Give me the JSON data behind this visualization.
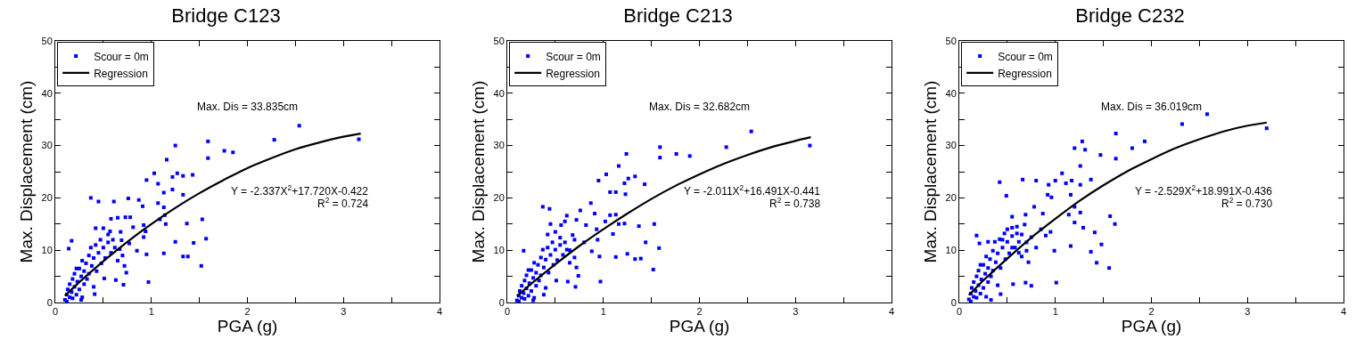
{
  "chart_data": [
    {
      "type": "scatter",
      "title": "Bridge C123",
      "xlabel": "PGA (g)",
      "ylabel": "Max. Displacement (cm)",
      "xlim": [
        0,
        4
      ],
      "ylim": [
        0,
        50
      ],
      "xticks": [
        0,
        {
          "value": 0.5,
          "label": null
        },
        1,
        {
          "value": 1.5,
          "label": null
        },
        2,
        {
          "value": 2.5,
          "label": null
        },
        3,
        {
          "value": 3.5,
          "label": null
        },
        4
      ],
      "yticks": [
        0,
        {
          "value": 5,
          "label": null
        },
        10,
        {
          "value": 15,
          "label": null
        },
        20,
        {
          "value": 25,
          "label": null
        },
        30,
        {
          "value": 35,
          "label": null
        },
        40,
        {
          "value": 45,
          "label": null
        },
        50
      ],
      "grid": false,
      "legend": "top left",
      "annotations": [
        "Max. Dis = 33.835cm",
        "Y = -2.337X$^{2}$+17.720X-0.422",
        "R$^{2}$ = 0.724"
      ],
      "series": [
        {
          "name": "Scour = 0m",
          "color": "#0000ff",
          "marker": "square",
          "x": [
            2.54,
            3.16,
            2.28,
            1.59,
            1.76,
            1.85,
            1.25,
            1.59,
            1.16,
            1.03,
            0.95,
            1.07,
            1.22,
            1.27,
            1.33,
            1.43,
            1.13,
            1.22,
            1.33,
            0.37,
            0.45,
            0.61,
            0.76,
            0.87,
            0.91,
            1.07,
            1.13,
            1.53,
            1.37,
            1.25,
            1.44,
            1.57,
            1.33,
            1.38,
            1.52,
            1.13,
            0.95,
            0.97,
            0.71,
            0.74,
            0.63,
            0.51,
            0.41,
            0.27,
            0.17,
            0.14,
            0.78,
            0.92,
            0.94,
            0.92,
            0.85,
            0.77,
            0.69,
            0.67,
            0.57,
            0.5,
            0.42,
            0.58,
            0.65,
            0.73,
            0.81,
            1.09,
            1.15,
            1.14,
            0.1,
            0.12,
            0.13,
            0.15,
            0.15,
            0.17,
            0.18,
            0.2,
            0.2,
            0.22,
            0.23,
            0.25,
            0.25,
            0.27,
            0.28,
            0.3,
            0.3,
            0.32,
            0.33,
            0.35,
            0.35,
            0.37,
            0.38,
            0.4,
            0.4,
            0.42,
            0.43,
            0.45,
            0.47,
            0.48,
            0.5,
            0.52,
            0.55,
            0.55,
            0.58,
            0.6,
            0.62,
            0.65,
            0.68,
            0.7,
            0.72,
            0.12,
            0.18,
            0.22,
            0.28
          ],
          "values": [
            33.8,
            31.2,
            31.1,
            30.8,
            29.0,
            28.7,
            30.0,
            27.6,
            27.3,
            24.7,
            23.4,
            22.7,
            24.0,
            24.7,
            24.2,
            24.4,
            21.0,
            21.6,
            20.6,
            20.0,
            19.3,
            19.3,
            19.9,
            19.6,
            18.4,
            19.0,
            18.2,
            15.9,
            15.1,
            11.6,
            11.4,
            12.2,
            8.8,
            8.8,
            7.0,
            9.4,
            9.2,
            3.9,
            3.4,
            5.7,
            4.3,
            4.6,
            1.6,
            0.5,
            11.8,
            10.3,
            16.3,
            14.8,
            13.6,
            12.5,
            9.9,
            11.3,
            11.9,
            10.2,
            13.6,
            14.2,
            14.2,
            16.0,
            16.2,
            16.3,
            14.4,
            15.9,
            15.0,
            16.7,
            0.5,
            1.5,
            2.5,
            1.0,
            3.5,
            2.0,
            4.5,
            3.0,
            5.5,
            1.5,
            4.0,
            6.5,
            2.5,
            5.0,
            8.0,
            3.5,
            6.0,
            7.5,
            4.5,
            9.0,
            5.5,
            10.5,
            7.0,
            8.5,
            3.0,
            11.0,
            6.0,
            9.5,
            12.0,
            7.5,
            10.5,
            8.5,
            11.5,
            13.0,
            9.5,
            12.0,
            10.5,
            8.0,
            13.5,
            9.0,
            7.0,
            0.2,
            0.8,
            6.5,
            1.0
          ]
        },
        {
          "name": "Regression",
          "type": "line",
          "color": "#000000",
          "line_style": "solid",
          "x": [
            0.1,
            0.25,
            0.5,
            0.75,
            1,
            1.25,
            1.5,
            1.75,
            2,
            2.25,
            2.5,
            2.75,
            3,
            3.18
          ],
          "values": [
            1.3,
            3.9,
            7.9,
            11.6,
            15.0,
            18.1,
            20.9,
            23.4,
            25.7,
            27.6,
            29.3,
            30.6,
            31.7,
            32.3
          ]
        }
      ]
    },
    {
      "type": "scatter",
      "title": "Bridge C213",
      "xlabel": "PGA (g)",
      "ylabel": "Max. Displacement (cm)",
      "xlim": [
        0,
        4
      ],
      "ylim": [
        0,
        50
      ],
      "xticks": [
        0,
        {
          "value": 0.5,
          "label": null
        },
        1,
        {
          "value": 1.5,
          "label": null
        },
        2,
        {
          "value": 2.5,
          "label": null
        },
        3,
        {
          "value": 3.5,
          "label": null
        },
        4
      ],
      "yticks": [
        0,
        {
          "value": 5,
          "label": null
        },
        10,
        {
          "value": 15,
          "label": null
        },
        20,
        {
          "value": 25,
          "label": null
        },
        30,
        {
          "value": 35,
          "label": null
        },
        40,
        {
          "value": 45,
          "label": null
        },
        50
      ],
      "grid": false,
      "legend": "top left",
      "annotations": [
        "Max. Dis = 32.682cm",
        "Y = -2.011X$^{2}$+16.491X-0.441",
        "R$^{2}$ = 0.738"
      ],
      "series": [
        {
          "name": "Scour = 0m",
          "color": "#0000ff",
          "marker": "square",
          "x": [
            2.54,
            3.15,
            2.28,
            1.59,
            1.59,
            1.76,
            1.9,
            1.24,
            1.16,
            1.03,
            0.95,
            1.22,
            1.26,
            1.33,
            1.43,
            1.07,
            1.13,
            1.23,
            0.37,
            0.44,
            0.62,
            0.76,
            0.87,
            0.91,
            1.07,
            1.13,
            1.53,
            1.37,
            1.44,
            1.58,
            1.25,
            1.33,
            1.39,
            1.52,
            1.13,
            0.96,
            0.97,
            0.71,
            0.74,
            0.63,
            0.51,
            0.38,
            0.27,
            0.17,
            1.16,
            1.22,
            1.1,
            0.93,
            0.94,
            0.88,
            0.8,
            0.7,
            0.65,
            0.56,
            0.5,
            0.45,
            0.42,
            0.6,
            0.72,
            0.82,
            1.02,
            0.1,
            0.12,
            0.13,
            0.15,
            0.15,
            0.17,
            0.18,
            0.2,
            0.2,
            0.22,
            0.23,
            0.25,
            0.25,
            0.27,
            0.28,
            0.3,
            0.3,
            0.32,
            0.33,
            0.35,
            0.35,
            0.37,
            0.38,
            0.4,
            0.4,
            0.42,
            0.43,
            0.45,
            0.47,
            0.48,
            0.5,
            0.52,
            0.55,
            0.55,
            0.58,
            0.6,
            0.62,
            0.65,
            0.68,
            0.7,
            0.72,
            0.12,
            0.18,
            0.22,
            0.28
          ],
          "values": [
            32.7,
            30.0,
            29.7,
            29.7,
            27.7,
            28.4,
            28.0,
            28.4,
            26.1,
            24.5,
            23.3,
            22.8,
            23.7,
            24.1,
            22.6,
            21.1,
            21.1,
            20.7,
            18.3,
            17.9,
            16.6,
            17.6,
            19.0,
            17.0,
            16.7,
            16.8,
            15.0,
            14.6,
            11.5,
            10.4,
            9.3,
            8.3,
            8.4,
            6.3,
            8.7,
            8.8,
            4.0,
            3.0,
            5.1,
            4.0,
            4.2,
            1.5,
            0.4,
            9.9,
            15.0,
            15.1,
            13.1,
            14.0,
            12.0,
            9.8,
            11.5,
            12.0,
            10.0,
            14.8,
            13.5,
            15.0,
            13.0,
            15.5,
            15.8,
            14.8,
            15.5,
            0.4,
            1.3,
            2.2,
            0.9,
            3.2,
            1.8,
            4.2,
            2.7,
            5.2,
            1.3,
            3.7,
            6.2,
            2.2,
            4.7,
            7.6,
            3.2,
            5.7,
            7.2,
            4.2,
            8.6,
            5.2,
            10.1,
            6.7,
            8.2,
            2.8,
            10.5,
            5.7,
            9.1,
            11.5,
            7.2,
            10.1,
            8.1,
            11.0,
            12.4,
            9.1,
            11.5,
            10.1,
            7.6,
            12.9,
            8.6,
            6.7,
            0.2,
            0.7,
            6.2,
            0.9
          ]
        },
        {
          "name": "Regression",
          "type": "line",
          "color": "#000000",
          "line_style": "solid",
          "x": [
            0.1,
            0.25,
            0.5,
            0.75,
            1,
            1.25,
            1.5,
            1.75,
            2,
            2.25,
            2.5,
            2.75,
            3,
            3.16
          ],
          "values": [
            1.2,
            3.6,
            7.3,
            10.8,
            14.0,
            17.0,
            19.8,
            22.3,
            24.5,
            26.5,
            28.2,
            29.7,
            30.9,
            31.6
          ]
        }
      ]
    },
    {
      "type": "scatter",
      "title": "Bridge C232",
      "xlabel": "PGA (g)",
      "ylabel": "Max. Displacement (cm)",
      "xlim": [
        0,
        4
      ],
      "ylim": [
        0,
        50
      ],
      "xticks": [
        0,
        {
          "value": 0.5,
          "label": null
        },
        1,
        {
          "value": 1.5,
          "label": null
        },
        2,
        {
          "value": 2.5,
          "label": null
        },
        3,
        {
          "value": 3.5,
          "label": null
        },
        4
      ],
      "yticks": [
        0,
        {
          "value": 5,
          "label": null
        },
        10,
        {
          "value": 15,
          "label": null
        },
        20,
        {
          "value": 25,
          "label": null
        },
        30,
        {
          "value": 35,
          "label": null
        },
        40,
        {
          "value": 45,
          "label": null
        },
        50
      ],
      "grid": false,
      "legend": "top left",
      "annotations": [
        "Max. Dis = 36.019cm",
        "Y = -2.529X$^{2}$+18.991X-0.436",
        "R$^{2}$ = 0.730"
      ],
      "series": [
        {
          "name": "Scour = 0m",
          "color": "#0000ff",
          "marker": "square",
          "x": [
            2.58,
            3.2,
            2.32,
            1.63,
            1.63,
            1.8,
            1.93,
            1.28,
            1.2,
            1.31,
            1.47,
            1.26,
            1.07,
            1.0,
            0.93,
            1.11,
            1.17,
            1.26,
            1.37,
            1.16,
            0.92,
            0.96,
            0.42,
            0.49,
            0.66,
            0.8,
            0.78,
            0.69,
            0.55,
            0.87,
            1.14,
            1.2,
            1.26,
            1.57,
            1.62,
            1.2,
            1.29,
            1.41,
            1.48,
            1.37,
            1.43,
            1.56,
            1.16,
            0.99,
            1.01,
            0.75,
            0.69,
            0.56,
            0.43,
            0.33,
            0.18,
            0.21,
            0.3,
            0.6,
            0.65,
            0.7,
            0.75,
            0.8,
            0.85,
            0.9,
            0.95,
            0.5,
            0.45,
            0.55,
            0.62,
            0.1,
            0.12,
            0.13,
            0.15,
            0.15,
            0.17,
            0.18,
            0.2,
            0.2,
            0.22,
            0.23,
            0.25,
            0.25,
            0.27,
            0.28,
            0.3,
            0.3,
            0.32,
            0.33,
            0.35,
            0.35,
            0.37,
            0.38,
            0.4,
            0.4,
            0.42,
            0.43,
            0.45,
            0.47,
            0.48,
            0.5,
            0.52,
            0.55,
            0.55,
            0.58,
            0.6,
            0.62,
            0.65,
            0.68,
            0.7,
            0.72,
            0.12,
            0.18,
            0.22,
            0.28
          ],
          "values": [
            36.0,
            33.3,
            34.1,
            32.3,
            27.5,
            29.5,
            30.8,
            30.8,
            29.5,
            29.2,
            28.2,
            26.1,
            24.7,
            23.3,
            22.5,
            22.8,
            23.3,
            22.5,
            23.5,
            20.6,
            20.6,
            20.1,
            23.0,
            20.4,
            23.5,
            23.3,
            18.3,
            16.8,
            16.4,
            17.0,
            16.8,
            18.3,
            17.2,
            16.5,
            15.0,
            15.3,
            14.3,
            13.4,
            11.1,
            9.7,
            7.6,
            6.6,
            10.8,
            9.9,
            3.8,
            3.2,
            3.8,
            3.5,
            1.6,
            0.5,
            12.8,
            11.3,
            11.6,
            14.5,
            13.0,
            11.5,
            12.5,
            10.5,
            14.0,
            12.8,
            13.5,
            14.0,
            12.0,
            10.5,
            9.5,
            0.6,
            1.7,
            2.8,
            1.1,
            3.9,
            2.2,
            5.0,
            3.3,
            6.1,
            1.7,
            4.4,
            7.2,
            2.8,
            5.5,
            8.8,
            3.9,
            6.6,
            8.3,
            5.0,
            9.9,
            6.1,
            11.6,
            7.7,
            9.4,
            3.3,
            12.1,
            6.6,
            10.5,
            13.2,
            8.3,
            11.6,
            9.4,
            12.7,
            14.3,
            10.5,
            13.2,
            11.6,
            8.8,
            14.9,
            9.9,
            7.7,
            0.2,
            0.9,
            7.2,
            1.1
          ]
        },
        {
          "name": "Regression",
          "type": "line",
          "color": "#000000",
          "line_style": "solid",
          "x": [
            0.1,
            0.25,
            0.5,
            0.75,
            1,
            1.25,
            1.5,
            1.75,
            2,
            2.25,
            2.5,
            2.75,
            3,
            3.2
          ],
          "values": [
            1.4,
            4.2,
            8.4,
            12.4,
            16.0,
            19.4,
            22.4,
            25.1,
            27.4,
            29.5,
            31.2,
            32.7,
            33.8,
            34.4
          ]
        }
      ]
    }
  ]
}
